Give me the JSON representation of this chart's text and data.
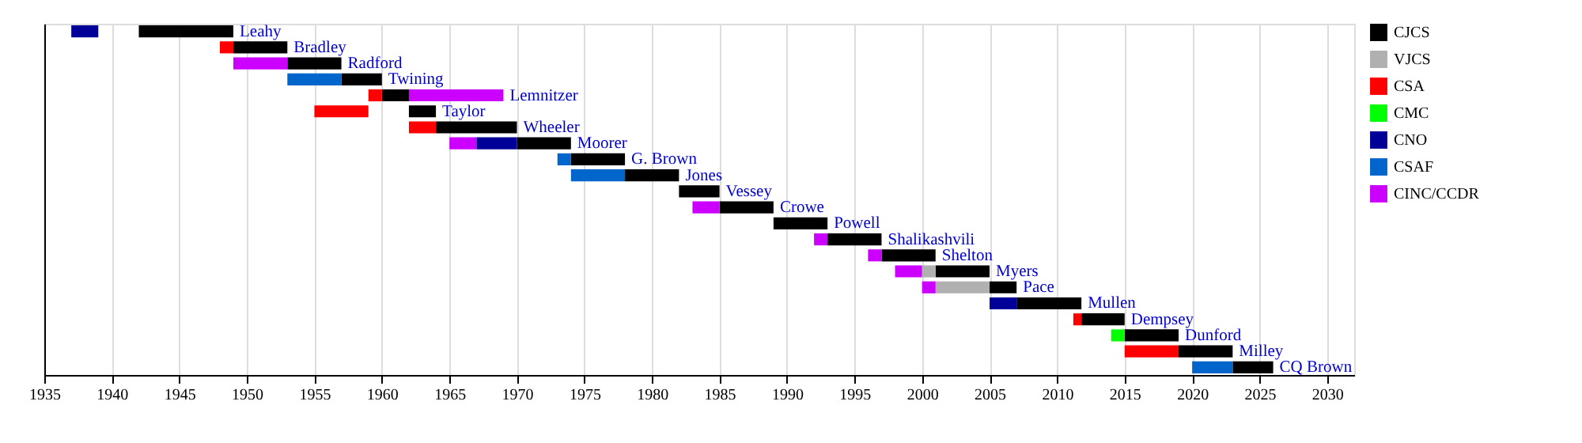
{
  "chart_data": {
    "type": "bar",
    "orientation": "horizontal",
    "categories": [
      "Leahy",
      "Bradley",
      "Radford",
      "Twining",
      "Lemnitzer",
      "Taylor",
      "Wheeler",
      "Moorer",
      "G. Brown",
      "Jones",
      "Vessey",
      "Crowe",
      "Powell",
      "Shalikashvili",
      "Shelton",
      "Myers",
      "Pace",
      "Mullen",
      "Dempsey",
      "Dunford",
      "Milley",
      "CQ Brown"
    ],
    "series": [
      {
        "name": "CJCS",
        "color": "#000000",
        "base": [
          1942,
          1949,
          1953,
          1957,
          1960,
          1962,
          1964,
          1970,
          1974,
          1978,
          1982,
          1985,
          1989,
          1993,
          1997,
          2001,
          2005,
          2007,
          2011.8,
          2015,
          2019,
          2023
        ],
        "values": [
          7,
          4,
          4,
          3,
          2,
          2,
          6,
          4,
          4,
          4,
          3,
          4,
          4,
          4,
          4,
          4,
          2,
          4.8,
          3.2,
          4,
          4,
          3
        ]
      },
      {
        "name": "VJCS",
        "color": "#b0b0b0",
        "base": [
          null,
          null,
          null,
          null,
          null,
          null,
          null,
          null,
          null,
          null,
          null,
          null,
          null,
          null,
          null,
          2000,
          2001,
          null,
          null,
          null,
          null,
          null
        ],
        "values": [
          null,
          null,
          null,
          null,
          null,
          null,
          null,
          null,
          null,
          null,
          null,
          null,
          null,
          null,
          null,
          1,
          4,
          null,
          null,
          null,
          null,
          null
        ]
      },
      {
        "name": "CSA",
        "color": "#ff0000",
        "base": [
          null,
          1948,
          null,
          null,
          1959,
          1955,
          1962,
          null,
          null,
          null,
          null,
          null,
          null,
          null,
          null,
          null,
          null,
          null,
          2011.2,
          null,
          2015,
          null
        ],
        "values": [
          null,
          1,
          null,
          null,
          1,
          4,
          2,
          null,
          null,
          null,
          null,
          null,
          null,
          null,
          null,
          null,
          null,
          null,
          0.6,
          null,
          4,
          null
        ]
      },
      {
        "name": "CMC",
        "color": "#00ff00",
        "base": [
          null,
          null,
          null,
          null,
          null,
          null,
          null,
          null,
          null,
          null,
          null,
          null,
          null,
          null,
          null,
          null,
          null,
          null,
          null,
          2014,
          null,
          null
        ],
        "values": [
          null,
          null,
          null,
          null,
          null,
          null,
          null,
          null,
          null,
          null,
          null,
          null,
          null,
          null,
          null,
          null,
          null,
          null,
          null,
          1,
          null,
          null
        ]
      },
      {
        "name": "CNO",
        "color": "#000099",
        "base": [
          1937,
          null,
          null,
          null,
          null,
          null,
          null,
          1967,
          null,
          null,
          null,
          null,
          null,
          null,
          null,
          null,
          null,
          2005,
          null,
          null,
          null,
          null
        ],
        "values": [
          2,
          null,
          null,
          null,
          null,
          null,
          null,
          3,
          null,
          null,
          null,
          null,
          null,
          null,
          null,
          null,
          null,
          2,
          null,
          null,
          null,
          null
        ]
      },
      {
        "name": "CSAF",
        "color": "#0066cc",
        "base": [
          null,
          null,
          null,
          1953,
          null,
          null,
          null,
          null,
          1973,
          1974,
          null,
          null,
          null,
          null,
          null,
          null,
          null,
          null,
          null,
          null,
          null,
          2020
        ],
        "values": [
          null,
          null,
          null,
          4,
          null,
          null,
          null,
          null,
          1,
          4,
          null,
          null,
          null,
          null,
          null,
          null,
          null,
          null,
          null,
          null,
          null,
          3
        ]
      },
      {
        "name": "CINC/CCDR",
        "color": "#cc00ff",
        "base": [
          null,
          null,
          1949,
          null,
          1962,
          null,
          null,
          1965,
          null,
          null,
          null,
          1983,
          null,
          1992,
          1996,
          1998,
          2000,
          null,
          null,
          null,
          null,
          null
        ],
        "values": [
          null,
          null,
          4,
          null,
          7,
          null,
          null,
          2,
          null,
          null,
          null,
          2,
          null,
          1,
          1,
          2,
          1,
          null,
          null,
          null,
          null,
          null
        ]
      }
    ],
    "xlim": [
      1935,
      2032
    ],
    "xticks": [
      1935,
      1940,
      1945,
      1950,
      1955,
      1960,
      1965,
      1970,
      1975,
      1980,
      1985,
      1990,
      1995,
      2000,
      2005,
      2010,
      2015,
      2020,
      2025,
      2030
    ],
    "grid": "x",
    "legend": "right",
    "tick_labels": "x"
  }
}
